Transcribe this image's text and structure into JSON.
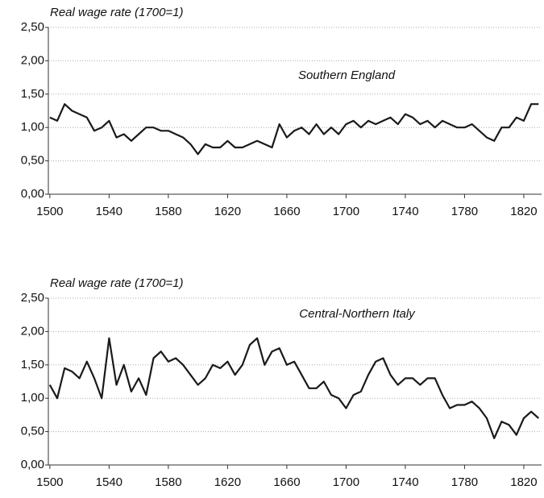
{
  "chart_data": [
    {
      "type": "line",
      "ylabel": "Real wage rate (1700=1)",
      "annotation": "Southern England",
      "x": [
        1500,
        1505,
        1510,
        1515,
        1520,
        1525,
        1530,
        1535,
        1540,
        1545,
        1550,
        1555,
        1560,
        1565,
        1570,
        1575,
        1580,
        1585,
        1590,
        1595,
        1600,
        1605,
        1610,
        1615,
        1620,
        1625,
        1630,
        1635,
        1640,
        1645,
        1650,
        1655,
        1660,
        1665,
        1670,
        1675,
        1680,
        1685,
        1690,
        1695,
        1700,
        1705,
        1710,
        1715,
        1720,
        1725,
        1730,
        1735,
        1740,
        1745,
        1750,
        1755,
        1760,
        1765,
        1770,
        1775,
        1780,
        1785,
        1790,
        1795,
        1800,
        1805,
        1810,
        1815,
        1820,
        1825,
        1830
      ],
      "series": [
        {
          "color": "#1a1a1a",
          "values": [
            1.15,
            1.1,
            1.35,
            1.25,
            1.2,
            1.15,
            0.95,
            1.0,
            1.1,
            0.85,
            0.9,
            0.8,
            0.9,
            1.0,
            1.0,
            0.95,
            0.95,
            0.9,
            0.85,
            0.75,
            0.6,
            0.75,
            0.7,
            0.7,
            0.8,
            0.7,
            0.7,
            0.75,
            0.8,
            0.75,
            0.7,
            1.05,
            0.85,
            0.95,
            1.0,
            0.9,
            1.05,
            0.9,
            1.0,
            0.9,
            1.05,
            1.1,
            1.0,
            1.1,
            1.05,
            1.1,
            1.15,
            1.05,
            1.2,
            1.15,
            1.05,
            1.1,
            1.0,
            1.1,
            1.05,
            1.0,
            1.0,
            1.05,
            0.95,
            0.85,
            0.8,
            1.0,
            1.0,
            1.15,
            1.1,
            1.35,
            1.35
          ]
        }
      ],
      "xlim": [
        1499,
        1832
      ],
      "xticks": [
        1500,
        1540,
        1580,
        1620,
        1660,
        1700,
        1740,
        1780,
        1820
      ],
      "ylim": [
        0,
        2.5
      ],
      "yticks": [
        {
          "value": 0,
          "label": "0,00"
        },
        {
          "value": 0.5,
          "label": "0,50"
        },
        {
          "value": 1,
          "label": "1,00"
        },
        {
          "value": 1.5,
          "label": "1,50"
        },
        {
          "value": 2,
          "label": "2,00"
        },
        {
          "value": 2.5,
          "label": "2,50"
        }
      ],
      "grid": true
    },
    {
      "type": "line",
      "ylabel": "Real wage rate (1700=1)",
      "annotation": "Central-Northern Italy",
      "x": [
        1500,
        1505,
        1510,
        1515,
        1520,
        1525,
        1530,
        1535,
        1540,
        1545,
        1550,
        1555,
        1560,
        1565,
        1570,
        1575,
        1580,
        1585,
        1590,
        1595,
        1600,
        1605,
        1610,
        1615,
        1620,
        1625,
        1630,
        1635,
        1640,
        1645,
        1650,
        1655,
        1660,
        1665,
        1670,
        1675,
        1680,
        1685,
        1690,
        1695,
        1700,
        1705,
        1710,
        1715,
        1720,
        1725,
        1730,
        1735,
        1740,
        1745,
        1750,
        1755,
        1760,
        1765,
        1770,
        1775,
        1780,
        1785,
        1790,
        1795,
        1800,
        1805,
        1810,
        1815,
        1820,
        1825,
        1830
      ],
      "series": [
        {
          "color": "#1a1a1a",
          "values": [
            1.2,
            1.0,
            1.45,
            1.4,
            1.3,
            1.55,
            1.3,
            1.0,
            1.9,
            1.2,
            1.5,
            1.1,
            1.3,
            1.05,
            1.6,
            1.7,
            1.55,
            1.6,
            1.5,
            1.35,
            1.2,
            1.3,
            1.5,
            1.45,
            1.55,
            1.35,
            1.5,
            1.8,
            1.9,
            1.5,
            1.7,
            1.75,
            1.5,
            1.55,
            1.35,
            1.15,
            1.15,
            1.25,
            1.05,
            1.0,
            0.85,
            1.05,
            1.1,
            1.35,
            1.55,
            1.6,
            1.35,
            1.2,
            1.3,
            1.3,
            1.2,
            1.3,
            1.3,
            1.05,
            0.85,
            0.9,
            0.9,
            0.95,
            0.85,
            0.7,
            0.4,
            0.65,
            0.6,
            0.45,
            0.7,
            0.8,
            0.7
          ]
        }
      ],
      "xlim": [
        1499,
        1832
      ],
      "xticks": [
        1500,
        1540,
        1580,
        1620,
        1660,
        1700,
        1740,
        1780,
        1820
      ],
      "ylim": [
        0,
        2.5
      ],
      "yticks": [
        {
          "value": 0,
          "label": "0,00"
        },
        {
          "value": 0.5,
          "label": "0,50"
        },
        {
          "value": 1,
          "label": "1,00"
        },
        {
          "value": 1.5,
          "label": "1,50"
        },
        {
          "value": 2,
          "label": "2,00"
        },
        {
          "value": 2.5,
          "label": "2,50"
        }
      ],
      "grid": true
    }
  ]
}
